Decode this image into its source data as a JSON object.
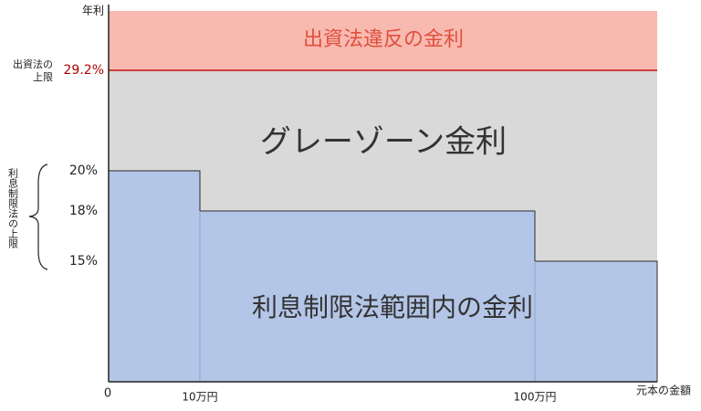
{
  "y_axis": {
    "label": "年利",
    "ticks": [
      "29.2%",
      "20%",
      "18%",
      "15%"
    ]
  },
  "x_axis": {
    "label": "元本の金額",
    "origin": "0",
    "ticks": [
      "10万円",
      "100万円"
    ]
  },
  "annotations": {
    "legal_limit": [
      "出資法の",
      "上限"
    ],
    "interest_limit": "利息制限法の上限"
  },
  "regions": {
    "illegal": "出資法違反の金利",
    "gray": "グレーゾーン金利",
    "legal": "利息制限法範囲内の金利"
  }
}
